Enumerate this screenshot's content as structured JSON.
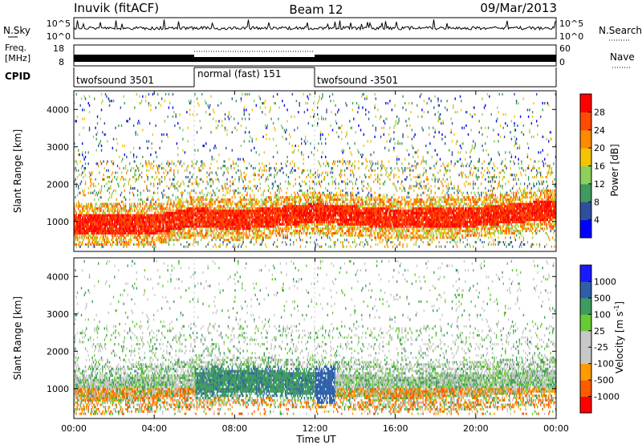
{
  "header": {
    "station": "Inuvik (fitACF)",
    "beam": "Beam 12",
    "date": "09/Mar/2013"
  },
  "panels": {
    "nsky": {
      "label": "N.Sky",
      "left_ticks": [
        "10^5",
        "10^0"
      ],
      "right_ticks": [
        "10^5",
        "10^0"
      ],
      "right_label": "N.Search",
      "right_line_style": "dotted"
    },
    "freq": {
      "label_line1": "Freq.",
      "label_line2": "[MHz]",
      "left_ticks": [
        "18",
        "8"
      ],
      "right_ticks": [
        "60",
        "0"
      ],
      "right_label": "Nave",
      "right_line_style": "dotted"
    },
    "cpid": {
      "label": "CPID",
      "segments": [
        {
          "label": "twofsound 3501",
          "start": "00:00",
          "end": "06:00"
        },
        {
          "label": "normal (fast) 151",
          "start": "06:00",
          "end": "12:00"
        },
        {
          "label": "twofsound -3501",
          "start": "12:00",
          "end": "24:00"
        }
      ]
    }
  },
  "axes": {
    "xlabel": "Time UT",
    "xticks": [
      "00:00",
      "04:00",
      "08:00",
      "12:00",
      "16:00",
      "20:00",
      "00:00"
    ],
    "ylabel": "Slant Range [km]",
    "yticks": [
      "1000",
      "2000",
      "3000",
      "4000"
    ]
  },
  "colors": {
    "power": [
      "#0000ff",
      "#2e4fa0",
      "#3f9b5e",
      "#8fd05a",
      "#f5c400",
      "#ff8a00",
      "#ff4a00",
      "#ff0000"
    ],
    "velocity": [
      "#ff0000",
      "#ff5a00",
      "#ff9a00",
      "#c8c8c8",
      "#c8c8c8",
      "#66cc33",
      "#3f9b5e",
      "#2e5fa8",
      "#1a1aff"
    ]
  },
  "chart_data": [
    {
      "type": "heatmap",
      "title": "",
      "xlabel": "",
      "ylabel": "Slant Range [km]",
      "x_range": [
        "00:00",
        "24:00"
      ],
      "ylim": [
        200,
        4500
      ],
      "colorbar": {
        "label": "Power [dB]",
        "ticks": [
          "4",
          "8",
          "12",
          "16",
          "20",
          "24",
          "28"
        ],
        "range": [
          0,
          32
        ]
      },
      "dominant_band": [
        {
          "time": "00:00",
          "range_km": 900
        },
        {
          "time": "04:00",
          "range_km": 900
        },
        {
          "time": "06:00",
          "range_km": 1100
        },
        {
          "time": "08:00",
          "range_km": 1000
        },
        {
          "time": "10:00",
          "range_km": 1100
        },
        {
          "time": "12:00",
          "range_km": 1200
        },
        {
          "time": "16:00",
          "range_km": 1050
        },
        {
          "time": "20:00",
          "range_km": 1100
        },
        {
          "time": "24:00",
          "range_km": 1300
        }
      ]
    },
    {
      "type": "heatmap",
      "title": "",
      "xlabel": "Time UT",
      "ylabel": "Slant Range [km]",
      "x_range": [
        "00:00",
        "24:00"
      ],
      "ylim": [
        200,
        4500
      ],
      "colorbar": {
        "label": "Velocity [m s^-1]",
        "ticks": [
          "-1000",
          "-500",
          "-100",
          "-25",
          "25",
          "100",
          "500",
          "1000"
        ],
        "range": [
          -1200,
          1200
        ]
      },
      "dominant_band": [
        {
          "time": "00:00",
          "range_km": 900
        },
        {
          "time": "04:00",
          "range_km": 1000
        },
        {
          "time": "08:00",
          "range_km": 1200
        },
        {
          "time": "12:00",
          "range_km": 1100
        },
        {
          "time": "16:00",
          "range_km": 1000
        },
        {
          "time": "20:00",
          "range_km": 1050
        },
        {
          "time": "24:00",
          "range_km": 1200
        }
      ]
    }
  ]
}
